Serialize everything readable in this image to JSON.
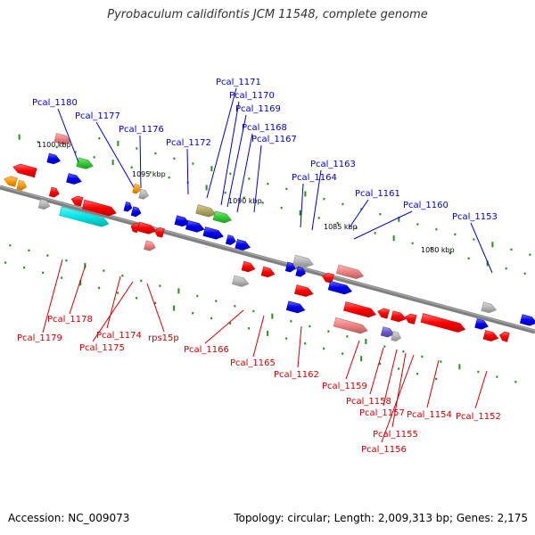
{
  "title": "Pyrobaculum calidifontis JCM 11548, complete genome",
  "footer": {
    "accession": "Accession: NC_009073",
    "topology": "Topology: circular; Length: 2,009,313 bp; Genes: 2,175"
  },
  "colors": {
    "backbone": "#808080",
    "tick": "#2e8b1e",
    "label_top": "#0000cc",
    "label_bottom": "#cc0000",
    "gene_red": "#ff0000",
    "gene_blue": "#0000ee",
    "gene_gray": "#b8b8b8",
    "gene_pink": "#f08080",
    "gene_cyan": "#00e6e6",
    "gene_green": "#33cc33",
    "gene_olive": "#b0a860",
    "gene_orange": "#ff9900",
    "gene_purple": "#6a5acd"
  },
  "scale_labels": [
    "1100 kbp",
    "1095 kbp",
    "1090 kbp",
    "1085 kbp",
    "1080 kbp"
  ],
  "top_labels": [
    "Pcal_1180",
    "Pcal_1177",
    "Pcal_1176",
    "Pcal_1172",
    "Pcal_1171",
    "Pcal_1170",
    "Pcal_1169",
    "Pcal_1168",
    "Pcal_1167",
    "Pcal_1163",
    "Pcal_1164",
    "Pcal_1161",
    "Pcal_1160",
    "Pcal_1153"
  ],
  "bottom_labels": [
    "Pcal_1178",
    "Pcal_1179",
    "Pcal_1174",
    "Pcal_1175",
    "rps15p",
    "Pcal_1166",
    "Pcal_1165",
    "Pcal_1162",
    "Pcal_1159",
    "Pcal_1158",
    "Pcal_1157",
    "Pcal_1154",
    "Pcal_1152",
    "Pcal_1155",
    "Pcal_1156"
  ]
}
